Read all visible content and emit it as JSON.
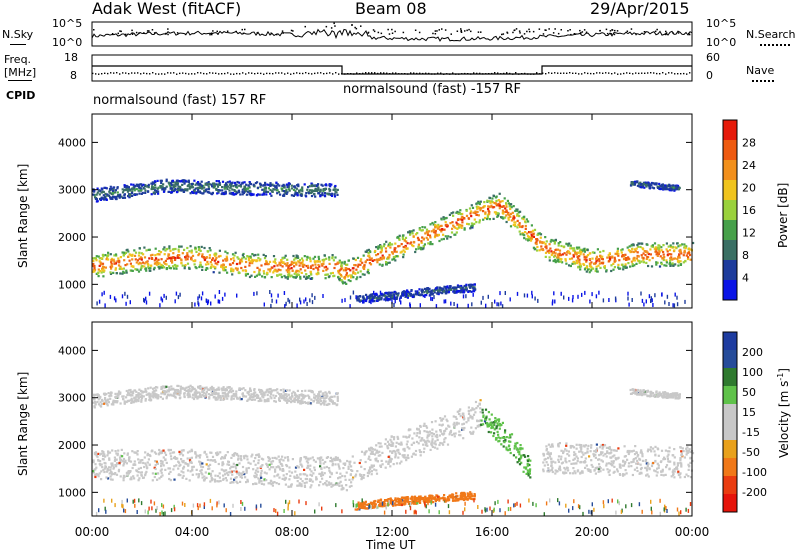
{
  "header": {
    "station": "Adak West (fitACF)",
    "beam": "Beam 08",
    "date": "29/Apr/2015"
  },
  "top_panel": {
    "left_label": "N.Sky",
    "right_label": "N.Search",
    "left_ticks": [
      "10^5",
      "10^0"
    ],
    "right_ticks": [
      "10^5",
      "10^0"
    ]
  },
  "freq_panel": {
    "left_label_line1": "Freq.",
    "left_label_line2": "[MHz]",
    "left_ticks": [
      "18",
      "8"
    ],
    "right_label": "Nave",
    "right_ticks": [
      "60",
      "0"
    ],
    "cpid_label": "CPID",
    "cpid_segments": [
      {
        "text": "normalsound (fast) 157 RF",
        "start_hour": 0,
        "end_hour": 10
      },
      {
        "text": "normalsound (fast) -157 RF",
        "start_hour": 10,
        "end_hour": 18
      }
    ]
  },
  "x_axis": {
    "label": "Time UT",
    "ticks": [
      "00:00",
      "04:00",
      "08:00",
      "12:00",
      "16:00",
      "20:00",
      "00:00"
    ]
  },
  "colors": {
    "power_scale": [
      "#0a14e6",
      "#1e3c9c",
      "#3a6f64",
      "#46a04a",
      "#9ad13c",
      "#f0c41e",
      "#f2901c",
      "#ee5a10",
      "#e61a0a"
    ],
    "velocity_scale": [
      "#1e3ca0",
      "#264c9a",
      "#2f7a2f",
      "#5fc24a",
      "#c8c8c8",
      "#c8c8c8",
      "#e8a11c",
      "#f07818",
      "#ea3c10",
      "#e6140a"
    ]
  },
  "chart_data": [
    {
      "type": "heatmap",
      "panel": "power",
      "ylabel": "Slant Range [km]",
      "yticks": [
        "1000",
        "2000",
        "3000",
        "4000"
      ],
      "ylim": [
        500,
        4600
      ],
      "xlim": [
        0,
        24
      ],
      "colorbar": {
        "label": "Power [dB]",
        "ticks": [
          "4",
          "8",
          "12",
          "16",
          "20",
          "24",
          "28"
        ],
        "range": [
          0,
          32
        ]
      },
      "bands": [
        {
          "name": "main",
          "center": [
            [
              0,
              1400
            ],
            [
              2,
              1550
            ],
            [
              4,
              1600
            ],
            [
              6,
              1420
            ],
            [
              8,
              1380
            ],
            [
              9.8,
              1400
            ],
            [
              10,
              1250
            ],
            [
              12,
              1750
            ],
            [
              14,
              2200
            ],
            [
              15.5,
              2550
            ],
            [
              16.3,
              2700
            ],
            [
              17.5,
              2100
            ],
            [
              18,
              1800
            ],
            [
              20,
              1500
            ],
            [
              22,
              1650
            ],
            [
              24,
              1650
            ]
          ],
          "width_km": 500,
          "intensity": 26
        },
        {
          "name": "upper",
          "center": [
            [
              0,
              2900
            ],
            [
              3,
              3100
            ],
            [
              6,
              3050
            ],
            [
              9.8,
              3000
            ]
          ],
          "width_km": 280,
          "intensity": 9
        },
        {
          "name": "lower",
          "center": [
            [
              10.5,
              700
            ],
            [
              12,
              780
            ],
            [
              14,
              900
            ],
            [
              15.3,
              950
            ]
          ],
          "width_km": 160,
          "intensity": 7
        },
        {
          "name": "evening-upper",
          "center": [
            [
              21.5,
              3150
            ],
            [
              23.5,
              3050
            ]
          ],
          "width_km": 120,
          "intensity": 8
        }
      ]
    },
    {
      "type": "heatmap",
      "panel": "velocity",
      "ylabel": "Slant Range [km]",
      "yticks": [
        "1000",
        "2000",
        "3000",
        "4000"
      ],
      "ylim": [
        500,
        4600
      ],
      "xlim": [
        0,
        24
      ],
      "colorbar": {
        "label": "Velocity [m s^-1]",
        "ticks": [
          "200",
          "100",
          "50",
          "15",
          "-15",
          "-50",
          "-100",
          "-200"
        ],
        "range": [
          -250,
          250
        ]
      },
      "bands": [
        {
          "name": "main-ground",
          "center": [
            [
              0,
              1600
            ],
            [
              4,
              1600
            ],
            [
              8,
              1450
            ],
            [
              9.8,
              1450
            ],
            [
              10,
              1350
            ],
            [
              12,
              1900
            ],
            [
              14,
              2300
            ],
            [
              15.5,
              2650
            ]
          ],
          "width_km": 650,
          "velocity": 0
        },
        {
          "name": "upper-ground",
          "center": [
            [
              0,
              2950
            ],
            [
              3,
              3150
            ],
            [
              6,
              3100
            ],
            [
              9.8,
              3000
            ]
          ],
          "width_km": 280,
          "velocity": 0
        },
        {
          "name": "descending",
          "center": [
            [
              15.5,
              2650
            ],
            [
              16.5,
              2200
            ],
            [
              17.5,
              1500
            ]
          ],
          "width_km": 500,
          "velocity": 45
        },
        {
          "name": "post-sunrise",
          "center": [
            [
              18,
              1750
            ],
            [
              24,
              1650
            ]
          ],
          "width_km": 650,
          "velocity": 0
        },
        {
          "name": "lower-orange",
          "center": [
            [
              10.5,
              720
            ],
            [
              12,
              820
            ],
            [
              14,
              900
            ],
            [
              15.3,
              960
            ]
          ],
          "width_km": 160,
          "velocity": -60
        },
        {
          "name": "evening-upper",
          "center": [
            [
              21.5,
              3150
            ],
            [
              23.5,
              3050
            ]
          ],
          "width_km": 120,
          "velocity": 0
        }
      ]
    }
  ]
}
